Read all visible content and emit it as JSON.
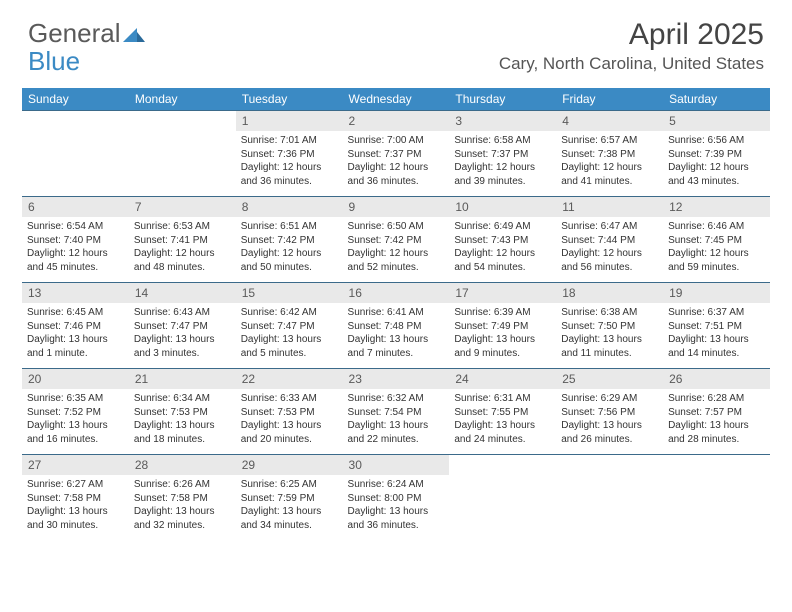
{
  "logo": {
    "text1": "General",
    "text2": "Blue"
  },
  "title": "April 2025",
  "location": "Cary, North Carolina, United States",
  "colors": {
    "header_bg": "#3b8ac4",
    "header_text": "#ffffff",
    "daynum_bg": "#e9e9e9",
    "border": "#3b6a8a",
    "body_text": "#333333",
    "logo_gray": "#5a5a5a",
    "logo_blue": "#3b8ac4"
  },
  "day_headers": [
    "Sunday",
    "Monday",
    "Tuesday",
    "Wednesday",
    "Thursday",
    "Friday",
    "Saturday"
  ],
  "weeks": [
    [
      {
        "n": "",
        "sr": "",
        "ss": "",
        "dl": ""
      },
      {
        "n": "",
        "sr": "",
        "ss": "",
        "dl": ""
      },
      {
        "n": "1",
        "sr": "Sunrise: 7:01 AM",
        "ss": "Sunset: 7:36 PM",
        "dl": "Daylight: 12 hours and 36 minutes."
      },
      {
        "n": "2",
        "sr": "Sunrise: 7:00 AM",
        "ss": "Sunset: 7:37 PM",
        "dl": "Daylight: 12 hours and 36 minutes."
      },
      {
        "n": "3",
        "sr": "Sunrise: 6:58 AM",
        "ss": "Sunset: 7:37 PM",
        "dl": "Daylight: 12 hours and 39 minutes."
      },
      {
        "n": "4",
        "sr": "Sunrise: 6:57 AM",
        "ss": "Sunset: 7:38 PM",
        "dl": "Daylight: 12 hours and 41 minutes."
      },
      {
        "n": "5",
        "sr": "Sunrise: 6:56 AM",
        "ss": "Sunset: 7:39 PM",
        "dl": "Daylight: 12 hours and 43 minutes."
      }
    ],
    [
      {
        "n": "6",
        "sr": "Sunrise: 6:54 AM",
        "ss": "Sunset: 7:40 PM",
        "dl": "Daylight: 12 hours and 45 minutes."
      },
      {
        "n": "7",
        "sr": "Sunrise: 6:53 AM",
        "ss": "Sunset: 7:41 PM",
        "dl": "Daylight: 12 hours and 48 minutes."
      },
      {
        "n": "8",
        "sr": "Sunrise: 6:51 AM",
        "ss": "Sunset: 7:42 PM",
        "dl": "Daylight: 12 hours and 50 minutes."
      },
      {
        "n": "9",
        "sr": "Sunrise: 6:50 AM",
        "ss": "Sunset: 7:42 PM",
        "dl": "Daylight: 12 hours and 52 minutes."
      },
      {
        "n": "10",
        "sr": "Sunrise: 6:49 AM",
        "ss": "Sunset: 7:43 PM",
        "dl": "Daylight: 12 hours and 54 minutes."
      },
      {
        "n": "11",
        "sr": "Sunrise: 6:47 AM",
        "ss": "Sunset: 7:44 PM",
        "dl": "Daylight: 12 hours and 56 minutes."
      },
      {
        "n": "12",
        "sr": "Sunrise: 6:46 AM",
        "ss": "Sunset: 7:45 PM",
        "dl": "Daylight: 12 hours and 59 minutes."
      }
    ],
    [
      {
        "n": "13",
        "sr": "Sunrise: 6:45 AM",
        "ss": "Sunset: 7:46 PM",
        "dl": "Daylight: 13 hours and 1 minute."
      },
      {
        "n": "14",
        "sr": "Sunrise: 6:43 AM",
        "ss": "Sunset: 7:47 PM",
        "dl": "Daylight: 13 hours and 3 minutes."
      },
      {
        "n": "15",
        "sr": "Sunrise: 6:42 AM",
        "ss": "Sunset: 7:47 PM",
        "dl": "Daylight: 13 hours and 5 minutes."
      },
      {
        "n": "16",
        "sr": "Sunrise: 6:41 AM",
        "ss": "Sunset: 7:48 PM",
        "dl": "Daylight: 13 hours and 7 minutes."
      },
      {
        "n": "17",
        "sr": "Sunrise: 6:39 AM",
        "ss": "Sunset: 7:49 PM",
        "dl": "Daylight: 13 hours and 9 minutes."
      },
      {
        "n": "18",
        "sr": "Sunrise: 6:38 AM",
        "ss": "Sunset: 7:50 PM",
        "dl": "Daylight: 13 hours and 11 minutes."
      },
      {
        "n": "19",
        "sr": "Sunrise: 6:37 AM",
        "ss": "Sunset: 7:51 PM",
        "dl": "Daylight: 13 hours and 14 minutes."
      }
    ],
    [
      {
        "n": "20",
        "sr": "Sunrise: 6:35 AM",
        "ss": "Sunset: 7:52 PM",
        "dl": "Daylight: 13 hours and 16 minutes."
      },
      {
        "n": "21",
        "sr": "Sunrise: 6:34 AM",
        "ss": "Sunset: 7:53 PM",
        "dl": "Daylight: 13 hours and 18 minutes."
      },
      {
        "n": "22",
        "sr": "Sunrise: 6:33 AM",
        "ss": "Sunset: 7:53 PM",
        "dl": "Daylight: 13 hours and 20 minutes."
      },
      {
        "n": "23",
        "sr": "Sunrise: 6:32 AM",
        "ss": "Sunset: 7:54 PM",
        "dl": "Daylight: 13 hours and 22 minutes."
      },
      {
        "n": "24",
        "sr": "Sunrise: 6:31 AM",
        "ss": "Sunset: 7:55 PM",
        "dl": "Daylight: 13 hours and 24 minutes."
      },
      {
        "n": "25",
        "sr": "Sunrise: 6:29 AM",
        "ss": "Sunset: 7:56 PM",
        "dl": "Daylight: 13 hours and 26 minutes."
      },
      {
        "n": "26",
        "sr": "Sunrise: 6:28 AM",
        "ss": "Sunset: 7:57 PM",
        "dl": "Daylight: 13 hours and 28 minutes."
      }
    ],
    [
      {
        "n": "27",
        "sr": "Sunrise: 6:27 AM",
        "ss": "Sunset: 7:58 PM",
        "dl": "Daylight: 13 hours and 30 minutes."
      },
      {
        "n": "28",
        "sr": "Sunrise: 6:26 AM",
        "ss": "Sunset: 7:58 PM",
        "dl": "Daylight: 13 hours and 32 minutes."
      },
      {
        "n": "29",
        "sr": "Sunrise: 6:25 AM",
        "ss": "Sunset: 7:59 PM",
        "dl": "Daylight: 13 hours and 34 minutes."
      },
      {
        "n": "30",
        "sr": "Sunrise: 6:24 AM",
        "ss": "Sunset: 8:00 PM",
        "dl": "Daylight: 13 hours and 36 minutes."
      },
      {
        "n": "",
        "sr": "",
        "ss": "",
        "dl": ""
      },
      {
        "n": "",
        "sr": "",
        "ss": "",
        "dl": ""
      },
      {
        "n": "",
        "sr": "",
        "ss": "",
        "dl": ""
      }
    ]
  ]
}
